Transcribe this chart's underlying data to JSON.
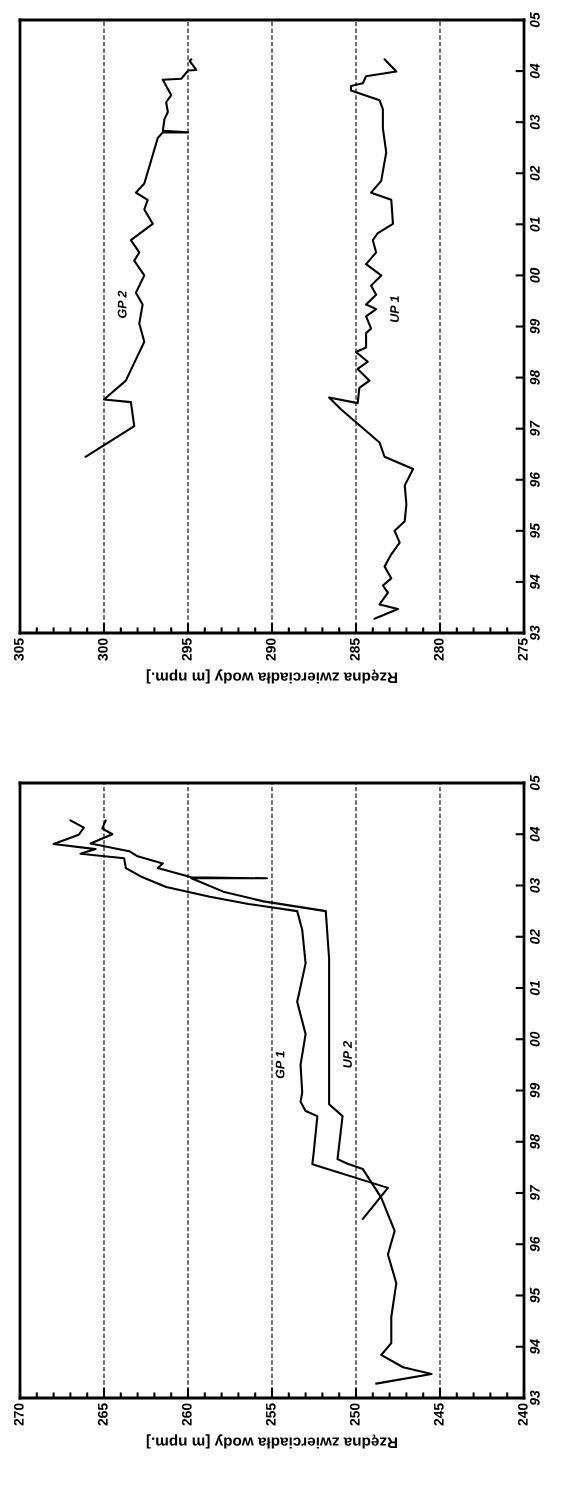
{
  "chart_data": [
    {
      "type": "line",
      "xlabel": "Rzędna zwierciadła wody [m npm.]",
      "ylim": [
        1993,
        2005
      ],
      "xlim": [
        305,
        275
      ],
      "yticks": [
        {
          "value": 1993,
          "label": "93"
        },
        {
          "value": 1994,
          "label": "94"
        },
        {
          "value": 1995,
          "label": "95"
        },
        {
          "value": 1996,
          "label": "96"
        },
        {
          "value": 1997,
          "label": "97"
        },
        {
          "value": 1998,
          "label": "98"
        },
        {
          "value": 1999,
          "label": "99"
        },
        {
          "value": 2000,
          "label": "00"
        },
        {
          "value": 2001,
          "label": "01"
        },
        {
          "value": 2002,
          "label": "02"
        },
        {
          "value": 2003,
          "label": "03"
        },
        {
          "value": 2004,
          "label": "04"
        },
        {
          "value": 2005,
          "label": "05"
        }
      ],
      "xticks": [
        305,
        300,
        295,
        290,
        285,
        280,
        275
      ],
      "grid": "x",
      "line_style": "solid",
      "series": [
        {
          "name": "GP 2",
          "color": "#000000",
          "values": [
            1996.45,
            1997.05,
            1997.52,
            1997.57,
            1997.94,
            1998.22,
            1998.7,
            1999.06,
            1999.43,
            1999.66,
            2000.0,
            2000.29,
            2000.45,
            2000.69,
            2001.01,
            2001.29,
            2001.48,
            2001.62,
            2001.8,
            2002.69,
            2002.8,
            2002.8,
            2002.83,
            2003.06,
            2003.2,
            2003.39,
            2003.53,
            2003.83,
            2003.85,
            2004.01,
            2004.02,
            2004.2,
            2004.23
          ],
          "x": [
            301.1,
            298.2,
            298.4,
            300.0,
            298.7,
            298.3,
            297.6,
            297.9,
            297.7,
            298.1,
            297.6,
            298.2,
            297.9,
            298.4,
            297.1,
            297.6,
            297.4,
            298.1,
            297.6,
            296.8,
            296.5,
            295.0,
            296.5,
            296.4,
            296.2,
            296.3,
            296.0,
            296.5,
            295.4,
            295.0,
            294.5,
            294.9,
            294.8
          ]
        },
        {
          "name": "UP 1",
          "color": "#000000",
          "values": [
            1993.28,
            1993.47,
            1993.56,
            1993.79,
            1993.93,
            1994.07,
            1994.3,
            1994.54,
            1994.77,
            1995.0,
            1995.19,
            1995.52,
            1995.89,
            1996.21,
            1996.45,
            1996.73,
            1997.38,
            1997.61,
            1997.5,
            1997.8,
            1997.94,
            1998.17,
            1998.31,
            1998.5,
            1998.59,
            1998.87,
            1998.96,
            1999.2,
            1999.34,
            1999.43,
            1999.62,
            1999.8,
            2000.0,
            2000.22,
            2000.45,
            2000.69,
            2000.83,
            2001.01,
            2001.48,
            2001.62,
            2001.85,
            2002.41,
            2002.88,
            2003.25,
            2003.43,
            2003.62,
            2003.71,
            2003.76,
            2003.9,
            2003.99,
            2004.23
          ],
          "x": [
            283.9,
            282.5,
            283.6,
            283.1,
            283.4,
            282.9,
            283.3,
            282.9,
            282.4,
            282.7,
            282.1,
            282.0,
            282.1,
            281.6,
            283.3,
            283.6,
            285.9,
            286.6,
            284.9,
            284.8,
            284.2,
            284.9,
            284.3,
            285.0,
            284.4,
            284.4,
            284.1,
            284.4,
            283.8,
            284.4,
            283.8,
            284.1,
            283.5,
            284.4,
            283.8,
            284.0,
            283.7,
            282.8,
            282.9,
            284.1,
            283.5,
            283.2,
            283.4,
            283.4,
            283.6,
            285.3,
            285.3,
            284.6,
            284.4,
            282.6,
            283.3
          ]
        }
      ]
    },
    {
      "type": "line",
      "xlabel": "Rzędna zwierciadła wody [m npm.]",
      "ylim": [
        1993,
        2005
      ],
      "xlim": [
        270,
        240
      ],
      "yticks": [
        {
          "value": 1993,
          "label": "93"
        },
        {
          "value": 1994,
          "label": "94"
        },
        {
          "value": 1995,
          "label": "95"
        },
        {
          "value": 1996,
          "label": "96"
        },
        {
          "value": 1997,
          "label": "97"
        },
        {
          "value": 1998,
          "label": "98"
        },
        {
          "value": 1999,
          "label": "99"
        },
        {
          "value": 2000,
          "label": "00"
        },
        {
          "value": 2001,
          "label": "01"
        },
        {
          "value": 2002,
          "label": "02"
        },
        {
          "value": 2003,
          "label": "03"
        },
        {
          "value": 2004,
          "label": "04"
        },
        {
          "value": 2005,
          "label": "05"
        }
      ],
      "xticks": [
        270,
        265,
        260,
        255,
        250,
        245,
        240
      ],
      "grid": "x",
      "line_style": "solid",
      "series": [
        {
          "name": "GP 1",
          "color": "#000000",
          "values": [
            1996.49,
            1997.1,
            1997.56,
            1997.84,
            1998.5,
            1998.6,
            1998.78,
            1998.96,
            1999.5,
            2000.1,
            2000.73,
            2001.48,
            2002.13,
            2002.5,
            2002.64,
            2002.78,
            2002.97,
            2003.16,
            2003.34,
            2003.53,
            2003.62,
            2003.71,
            2003.81,
            2003.99,
            2004.13,
            2004.27
          ],
          "x": [
            249.6,
            248.1,
            252.6,
            252.5,
            252.3,
            253.0,
            253.3,
            253.2,
            253.3,
            253.0,
            253.5,
            253.0,
            253.2,
            253.5,
            256.4,
            258.7,
            261.3,
            262.7,
            263.7,
            263.8,
            266.4,
            265.5,
            268.0,
            266.5,
            266.2,
            267.0
          ]
        },
        {
          "name": "UP 2",
          "color": "#000000",
          "values": [
            1993.28,
            1993.47,
            1993.6,
            1993.84,
            1994.07,
            1994.58,
            1995.24,
            1995.8,
            1996.26,
            1996.91,
            1997.47,
            1997.57,
            1997.66,
            1998.5,
            1998.73,
            1999.7,
            2001.57,
            2002.5,
            2002.69,
            2002.88,
            2003.14,
            2003.14,
            2003.16,
            2003.34,
            2003.43,
            2003.57,
            2003.67,
            2003.82,
            2004.0,
            2004.11,
            2004.27
          ],
          "x": [
            248.8,
            245.5,
            247.2,
            248.5,
            247.9,
            247.9,
            247.6,
            248.1,
            247.7,
            248.5,
            249.6,
            250.5,
            251.1,
            250.8,
            251.6,
            251.6,
            251.6,
            251.8,
            255.5,
            257.9,
            259.8,
            255.3,
            259.8,
            261.8,
            261.5,
            263.0,
            263.5,
            265.8,
            264.5,
            265.1,
            264.9
          ]
        }
      ]
    }
  ]
}
